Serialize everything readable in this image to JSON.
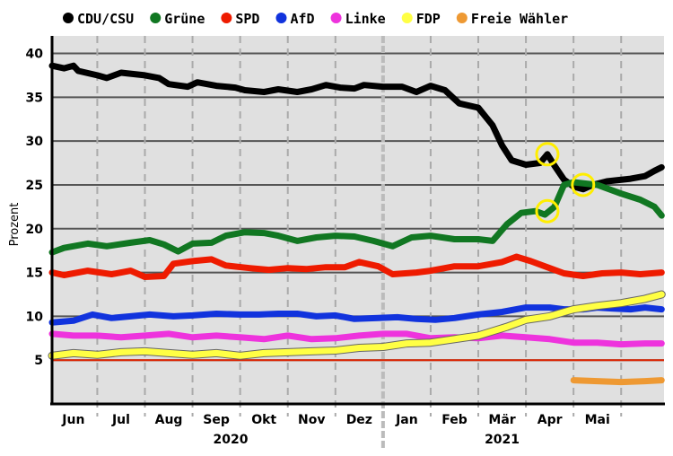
{
  "chart_data": {
    "type": "line",
    "title": "",
    "xlabel": "",
    "ylabel": "Prozent",
    "ylim": [
      0,
      42
    ],
    "yticks": [
      5,
      10,
      15,
      20,
      25,
      30,
      35,
      40
    ],
    "x_unit": "months since 1 May 2020",
    "xlim": [
      1.05,
      13.9
    ],
    "months": [
      {
        "label": "Jun",
        "center": 1.5
      },
      {
        "label": "Jul",
        "center": 2.5
      },
      {
        "label": "Aug",
        "center": 3.5
      },
      {
        "label": "Sep",
        "center": 4.5
      },
      {
        "label": "Okt",
        "center": 5.5
      },
      {
        "label": "Nov",
        "center": 6.5
      },
      {
        "label": "Dez",
        "center": 7.5
      },
      {
        "label": "Jan",
        "center": 8.5
      },
      {
        "label": "Feb",
        "center": 9.5
      },
      {
        "label": "Mär",
        "center": 10.5
      },
      {
        "label": "Apr",
        "center": 11.5
      },
      {
        "label": "Mai",
        "center": 12.5
      }
    ],
    "years": [
      {
        "label": "2020",
        "center": 4.8
      },
      {
        "label": "2021",
        "center": 10.5
      }
    ],
    "year_divider": 8.0,
    "threshold": {
      "value": 5,
      "color": "#dd2200"
    },
    "highlights": [
      {
        "x": 11.45,
        "y": 28.5
      },
      {
        "x": 11.45,
        "y": 22.0
      },
      {
        "x": 12.2,
        "y": 25.0
      }
    ],
    "series": [
      {
        "name": "CDU/CSU",
        "color": "#000000",
        "points": [
          [
            1.05,
            38.6
          ],
          [
            1.3,
            38.3
          ],
          [
            1.5,
            38.6
          ],
          [
            1.6,
            38.0
          ],
          [
            2.0,
            37.5
          ],
          [
            2.2,
            37.2
          ],
          [
            2.5,
            37.8
          ],
          [
            3.0,
            37.5
          ],
          [
            3.3,
            37.2
          ],
          [
            3.5,
            36.5
          ],
          [
            3.9,
            36.2
          ],
          [
            4.1,
            36.7
          ],
          [
            4.5,
            36.3
          ],
          [
            4.9,
            36.1
          ],
          [
            5.1,
            35.8
          ],
          [
            5.5,
            35.6
          ],
          [
            5.8,
            35.9
          ],
          [
            6.2,
            35.6
          ],
          [
            6.5,
            35.9
          ],
          [
            6.8,
            36.4
          ],
          [
            7.1,
            36.1
          ],
          [
            7.4,
            36.0
          ],
          [
            7.6,
            36.4
          ],
          [
            8.0,
            36.2
          ],
          [
            8.4,
            36.2
          ],
          [
            8.7,
            35.6
          ],
          [
            9.0,
            36.3
          ],
          [
            9.3,
            35.8
          ],
          [
            9.6,
            34.3
          ],
          [
            10.0,
            33.8
          ],
          [
            10.3,
            31.8
          ],
          [
            10.5,
            29.5
          ],
          [
            10.7,
            27.8
          ],
          [
            11.0,
            27.3
          ],
          [
            11.3,
            27.5
          ],
          [
            11.45,
            28.5
          ],
          [
            11.6,
            27.2
          ],
          [
            11.8,
            25.6
          ],
          [
            12.0,
            24.8
          ],
          [
            12.2,
            24.5
          ],
          [
            12.4,
            25.0
          ],
          [
            12.7,
            25.4
          ],
          [
            13.2,
            25.7
          ],
          [
            13.5,
            26.0
          ],
          [
            13.7,
            26.6
          ],
          [
            13.85,
            27.0
          ]
        ]
      },
      {
        "name": "Grüne",
        "color": "#117722",
        "points": [
          [
            1.05,
            17.3
          ],
          [
            1.3,
            17.8
          ],
          [
            1.8,
            18.3
          ],
          [
            2.2,
            18.0
          ],
          [
            2.7,
            18.4
          ],
          [
            3.1,
            18.7
          ],
          [
            3.4,
            18.2
          ],
          [
            3.7,
            17.4
          ],
          [
            4.0,
            18.3
          ],
          [
            4.4,
            18.4
          ],
          [
            4.7,
            19.2
          ],
          [
            5.1,
            19.6
          ],
          [
            5.5,
            19.5
          ],
          [
            5.8,
            19.2
          ],
          [
            6.2,
            18.6
          ],
          [
            6.6,
            19.0
          ],
          [
            7.0,
            19.2
          ],
          [
            7.4,
            19.1
          ],
          [
            7.8,
            18.6
          ],
          [
            8.2,
            18.0
          ],
          [
            8.6,
            19.0
          ],
          [
            9.0,
            19.2
          ],
          [
            9.5,
            18.8
          ],
          [
            10.0,
            18.8
          ],
          [
            10.3,
            18.6
          ],
          [
            10.6,
            20.5
          ],
          [
            10.9,
            21.8
          ],
          [
            11.2,
            22.0
          ],
          [
            11.4,
            21.6
          ],
          [
            11.6,
            22.5
          ],
          [
            11.8,
            25.0
          ],
          [
            12.0,
            25.3
          ],
          [
            12.5,
            25.0
          ],
          [
            13.0,
            24.0
          ],
          [
            13.4,
            23.3
          ],
          [
            13.7,
            22.5
          ],
          [
            13.85,
            21.5
          ]
        ]
      },
      {
        "name": "SPD",
        "color": "#ee1b00",
        "points": [
          [
            1.05,
            15.0
          ],
          [
            1.3,
            14.7
          ],
          [
            1.8,
            15.2
          ],
          [
            2.3,
            14.8
          ],
          [
            2.7,
            15.2
          ],
          [
            3.0,
            14.5
          ],
          [
            3.4,
            14.6
          ],
          [
            3.6,
            16.0
          ],
          [
            4.0,
            16.3
          ],
          [
            4.4,
            16.5
          ],
          [
            4.7,
            15.8
          ],
          [
            5.2,
            15.5
          ],
          [
            5.6,
            15.3
          ],
          [
            6.0,
            15.5
          ],
          [
            6.4,
            15.4
          ],
          [
            6.8,
            15.6
          ],
          [
            7.2,
            15.6
          ],
          [
            7.5,
            16.2
          ],
          [
            7.9,
            15.7
          ],
          [
            8.2,
            14.8
          ],
          [
            8.7,
            15.0
          ],
          [
            9.0,
            15.2
          ],
          [
            9.5,
            15.7
          ],
          [
            10.0,
            15.7
          ],
          [
            10.5,
            16.2
          ],
          [
            10.8,
            16.8
          ],
          [
            11.1,
            16.3
          ],
          [
            11.5,
            15.5
          ],
          [
            11.8,
            14.9
          ],
          [
            12.2,
            14.6
          ],
          [
            12.6,
            14.9
          ],
          [
            13.0,
            15.0
          ],
          [
            13.4,
            14.8
          ],
          [
            13.85,
            15.0
          ]
        ]
      },
      {
        "name": "AfD",
        "color": "#1133dd",
        "points": [
          [
            1.05,
            9.3
          ],
          [
            1.5,
            9.5
          ],
          [
            1.9,
            10.2
          ],
          [
            2.3,
            9.8
          ],
          [
            2.7,
            10.0
          ],
          [
            3.1,
            10.2
          ],
          [
            3.6,
            10.0
          ],
          [
            4.0,
            10.1
          ],
          [
            4.5,
            10.3
          ],
          [
            5.0,
            10.2
          ],
          [
            5.4,
            10.2
          ],
          [
            5.8,
            10.3
          ],
          [
            6.2,
            10.3
          ],
          [
            6.6,
            10.0
          ],
          [
            7.0,
            10.1
          ],
          [
            7.4,
            9.7
          ],
          [
            7.9,
            9.8
          ],
          [
            8.3,
            9.9
          ],
          [
            8.7,
            9.7
          ],
          [
            9.1,
            9.6
          ],
          [
            9.5,
            9.8
          ],
          [
            10.0,
            10.2
          ],
          [
            10.5,
            10.5
          ],
          [
            11.0,
            11.0
          ],
          [
            11.5,
            11.0
          ],
          [
            11.8,
            10.8
          ],
          [
            12.2,
            10.8
          ],
          [
            12.5,
            11.0
          ],
          [
            12.8,
            10.9
          ],
          [
            13.2,
            10.8
          ],
          [
            13.5,
            11.0
          ],
          [
            13.85,
            10.8
          ]
        ]
      },
      {
        "name": "Linke",
        "color": "#ee33dd",
        "points": [
          [
            1.05,
            8.0
          ],
          [
            1.5,
            7.8
          ],
          [
            2.0,
            7.8
          ],
          [
            2.5,
            7.6
          ],
          [
            3.0,
            7.8
          ],
          [
            3.5,
            8.0
          ],
          [
            4.0,
            7.6
          ],
          [
            4.5,
            7.8
          ],
          [
            5.0,
            7.6
          ],
          [
            5.5,
            7.4
          ],
          [
            6.0,
            7.8
          ],
          [
            6.5,
            7.4
          ],
          [
            7.0,
            7.5
          ],
          [
            7.5,
            7.8
          ],
          [
            8.0,
            8.0
          ],
          [
            8.5,
            8.0
          ],
          [
            9.0,
            7.5
          ],
          [
            9.5,
            7.6
          ],
          [
            10.0,
            7.5
          ],
          [
            10.5,
            7.8
          ],
          [
            11.0,
            7.6
          ],
          [
            11.5,
            7.4
          ],
          [
            12.0,
            7.0
          ],
          [
            12.5,
            7.0
          ],
          [
            13.0,
            6.8
          ],
          [
            13.5,
            6.9
          ],
          [
            13.85,
            6.9
          ]
        ]
      },
      {
        "name": "FDP",
        "color": "#ffff44",
        "points": [
          [
            1.05,
            5.5
          ],
          [
            1.5,
            5.8
          ],
          [
            2.0,
            5.6
          ],
          [
            2.5,
            5.9
          ],
          [
            3.0,
            6.0
          ],
          [
            3.5,
            5.8
          ],
          [
            4.0,
            5.6
          ],
          [
            4.5,
            5.8
          ],
          [
            5.0,
            5.5
          ],
          [
            5.5,
            5.8
          ],
          [
            6.0,
            5.9
          ],
          [
            6.5,
            6.0
          ],
          [
            7.0,
            6.1
          ],
          [
            7.5,
            6.4
          ],
          [
            8.0,
            6.5
          ],
          [
            8.5,
            6.9
          ],
          [
            9.0,
            7.0
          ],
          [
            9.5,
            7.4
          ],
          [
            10.0,
            7.8
          ],
          [
            10.3,
            8.3
          ],
          [
            10.6,
            8.8
          ],
          [
            11.0,
            9.6
          ],
          [
            11.5,
            10.0
          ],
          [
            12.0,
            10.8
          ],
          [
            12.5,
            11.2
          ],
          [
            13.0,
            11.5
          ],
          [
            13.5,
            12.0
          ],
          [
            13.85,
            12.5
          ]
        ]
      },
      {
        "name": "Freie Wähler",
        "color": "#ee9933",
        "points": [
          [
            12.0,
            2.7
          ],
          [
            12.5,
            2.6
          ],
          [
            13.0,
            2.5
          ],
          [
            13.5,
            2.6
          ],
          [
            13.85,
            2.7
          ]
        ]
      }
    ]
  }
}
